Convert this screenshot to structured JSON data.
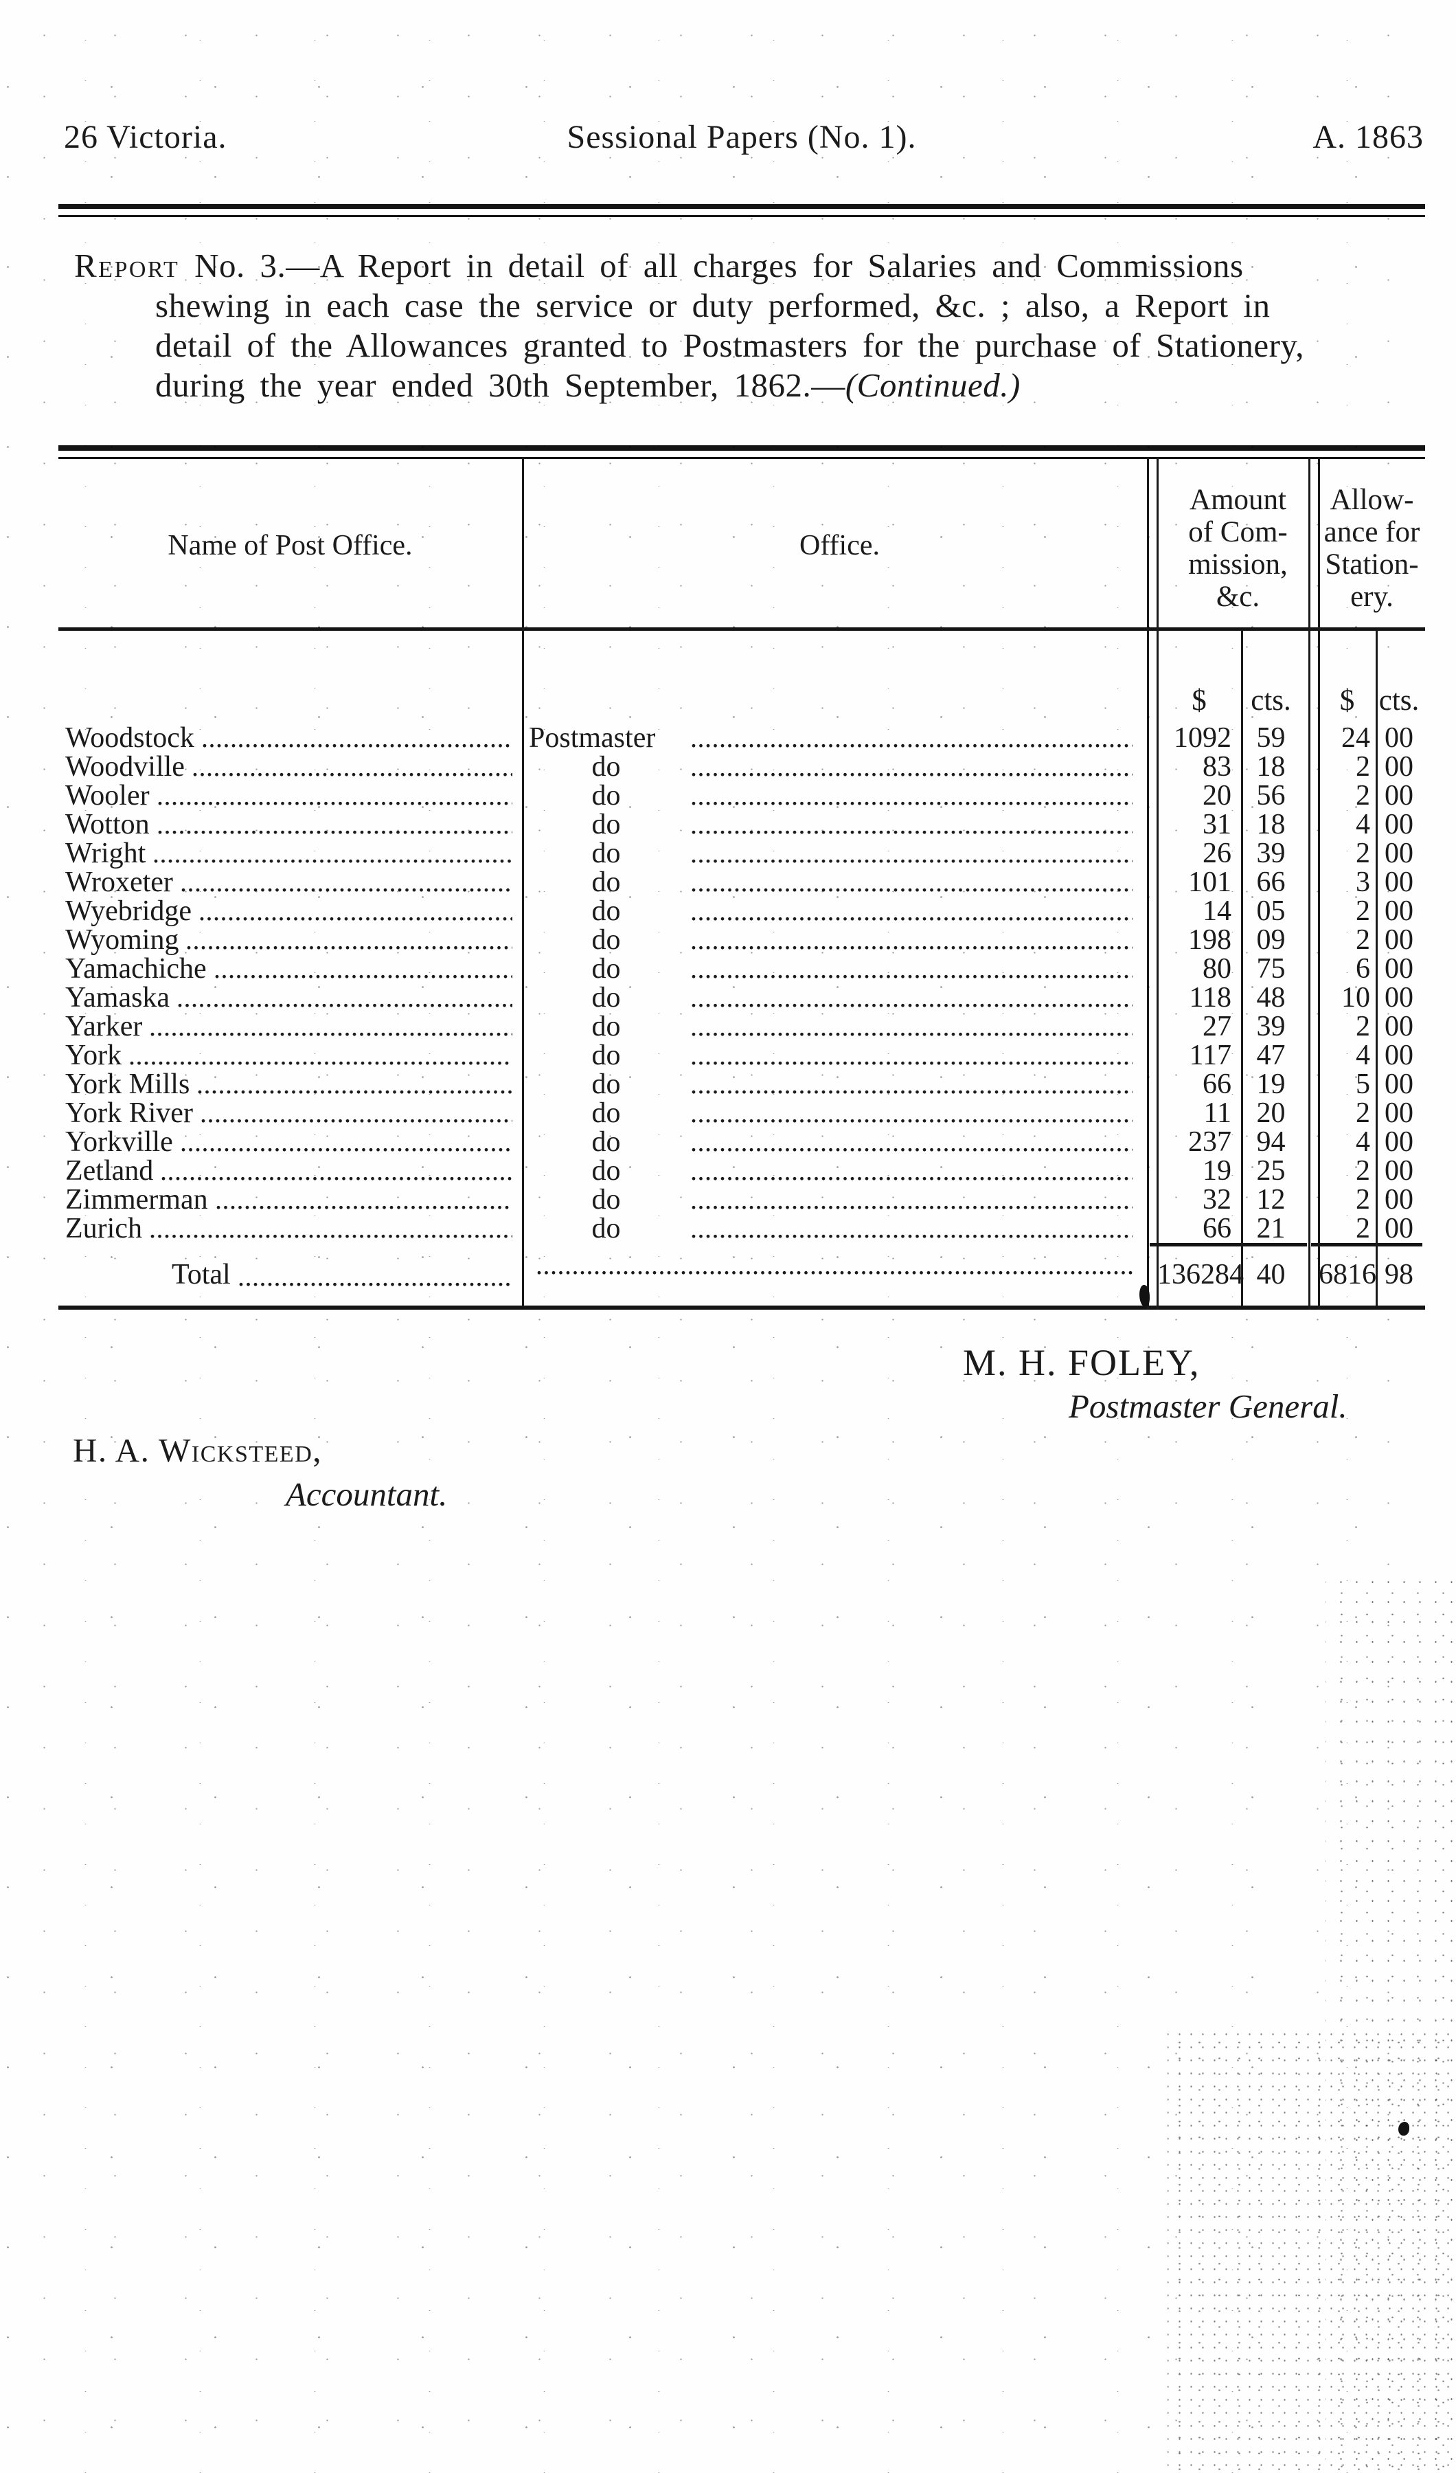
{
  "colors": {
    "ink": "#1b1b1b",
    "paper": "#fefefe"
  },
  "running_head": {
    "left": "26 Victoria.",
    "center": "Sessional Papers (No. 1).",
    "right": "A. 1863"
  },
  "report_title": {
    "line1_smallcaps": "Report",
    "line1_rest": " No. 3.—A Report in detail of all charges for Salaries and Commissions",
    "line2": "shewing in each case the service or duty performed, &c. ; also, a Report in",
    "line3": "detail of the Allowances granted to Postmasters for the purchase of Stationery,",
    "line4": "during the year ended 30th September, 1862.—",
    "line4_continued": "(Continued.)"
  },
  "table": {
    "headers": {
      "name": "Name of Post Office.",
      "office": "Office.",
      "amount": "Amount\nof Com-\nmission,\n&c.",
      "allowance": "Allow-\nance for\nStation-\nery.",
      "dollar": "$",
      "cents": "cts."
    },
    "rows": [
      {
        "name": "Woodstock",
        "office": "Postmaster",
        "cd": "1092",
        "cc": "59",
        "ad": "24",
        "ac": "00"
      },
      {
        "name": "Woodville",
        "office": "do",
        "cd": "83",
        "cc": "18",
        "ad": "2",
        "ac": "00"
      },
      {
        "name": "Wooler",
        "office": "do",
        "cd": "20",
        "cc": "56",
        "ad": "2",
        "ac": "00"
      },
      {
        "name": "Wotton",
        "office": "do",
        "cd": "31",
        "cc": "18",
        "ad": "4",
        "ac": "00"
      },
      {
        "name": "Wright",
        "office": "do",
        "cd": "26",
        "cc": "39",
        "ad": "2",
        "ac": "00"
      },
      {
        "name": "Wroxeter",
        "office": "do",
        "cd": "101",
        "cc": "66",
        "ad": "3",
        "ac": "00"
      },
      {
        "name": "Wyebridge",
        "office": "do",
        "cd": "14",
        "cc": "05",
        "ad": "2",
        "ac": "00"
      },
      {
        "name": "Wyoming",
        "office": "do",
        "cd": "198",
        "cc": "09",
        "ad": "2",
        "ac": "00"
      },
      {
        "name": "Yamachiche",
        "office": "do",
        "cd": "80",
        "cc": "75",
        "ad": "6",
        "ac": "00"
      },
      {
        "name": "Yamaska",
        "office": "do",
        "cd": "118",
        "cc": "48",
        "ad": "10",
        "ac": "00"
      },
      {
        "name": "Yarker",
        "office": "do",
        "cd": "27",
        "cc": "39",
        "ad": "2",
        "ac": "00"
      },
      {
        "name": "York",
        "office": "do",
        "cd": "117",
        "cc": "47",
        "ad": "4",
        "ac": "00"
      },
      {
        "name": "York Mills",
        "office": "do",
        "cd": "66",
        "cc": "19",
        "ad": "5",
        "ac": "00"
      },
      {
        "name": "York River",
        "office": "do",
        "cd": "11",
        "cc": "20",
        "ad": "2",
        "ac": "00"
      },
      {
        "name": "Yorkville",
        "office": "do",
        "cd": "237",
        "cc": "94",
        "ad": "4",
        "ac": "00"
      },
      {
        "name": "Zetland",
        "office": "do",
        "cd": "19",
        "cc": "25",
        "ad": "2",
        "ac": "00"
      },
      {
        "name": "Zimmerman",
        "office": "do",
        "cd": "32",
        "cc": "12",
        "ad": "2",
        "ac": "00"
      },
      {
        "name": "Zurich",
        "office": "do",
        "cd": "66",
        "cc": "21",
        "ad": "2",
        "ac": "00"
      }
    ],
    "total": {
      "label": "Total",
      "cd": "136284",
      "cc": "40",
      "ad": "6816",
      "ac": "98"
    }
  },
  "signatures": {
    "postmaster_general_name": "M. H. FOLEY,",
    "postmaster_general_title": "Postmaster General.",
    "accountant_name": "H. A. Wicksteed,",
    "accountant_title": "Accountant."
  }
}
